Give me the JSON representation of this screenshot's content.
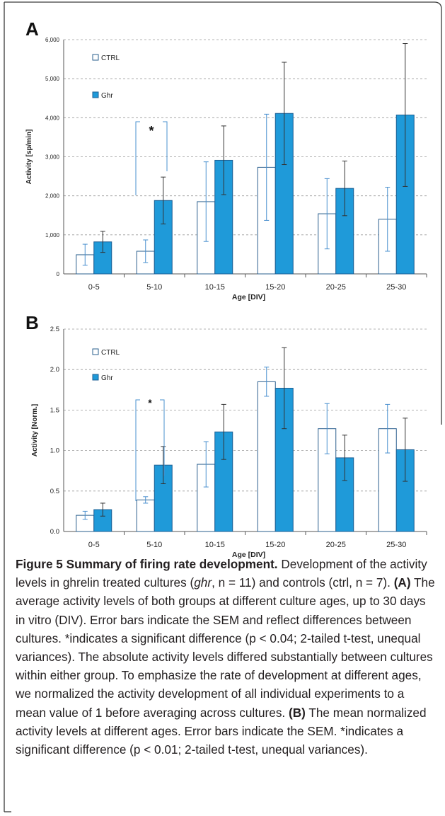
{
  "figure": {
    "caption": {
      "title": "Figure 5 Summary of firing rate development.",
      "text1": " Development of the activity levels in ghrelin treated cultures (",
      "ghr_italic": "ghr",
      "text2": ", n = 11) and controls (ctrl, n = 7). ",
      "a_label": "(A)",
      "text3": " The average activity levels of both groups at different culture ages, up to 30 days in vitro (DIV). Error bars indicate the SEM and reflect differences between cultures. *indicates a significant difference (p < 0.04; 2-tailed t-test, unequal variances). The absolute activity levels differed substantially between cultures within either group. To emphasize the rate of development at different ages, we normalized the activity development of all individual experiments to a mean value of 1 before averaging across cultures. ",
      "b_label": "(B)",
      "text4": " The mean normalized activity levels at different ages. Error bars indicate the SEM. *indicates a significant difference (p < 0.01; 2-tailed t-test, unequal variances)."
    }
  },
  "chart_data": [
    {
      "panel": "A",
      "type": "bar",
      "xlabel": "Age [DIV]",
      "ylabel": "Activity [sp/min]",
      "categories": [
        "0-5",
        "5-10",
        "10-15",
        "15-20",
        "20-25",
        "25-30"
      ],
      "ylim": [
        0,
        6000
      ],
      "yticks": [
        0,
        1000,
        2000,
        3000,
        4000,
        5000,
        6000
      ],
      "ytick_labels": [
        "0",
        "1,000",
        "2,000",
        "3,000",
        "4,000",
        "5,000",
        "6,000"
      ],
      "grid": true,
      "legend_position": "top-left",
      "series": [
        {
          "name": "CTRL",
          "color": "#ffffff",
          "edge": "#2a5f8e",
          "err_color": "#4a90cf",
          "values": [
            490,
            580,
            1850,
            2730,
            1540,
            1400
          ],
          "errors": [
            270,
            290,
            1020,
            1360,
            900,
            820
          ]
        },
        {
          "name": "Ghr",
          "color": "#1f9ad9",
          "edge": "#1d5f93",
          "err_color": "#333333",
          "values": [
            820,
            1880,
            2910,
            4110,
            2190,
            4070
          ],
          "errors": [
            270,
            600,
            880,
            1310,
            700,
            1830
          ]
        }
      ],
      "annotation": {
        "text": "*",
        "category": "5-10"
      }
    },
    {
      "panel": "B",
      "type": "bar",
      "xlabel": "Age [DIV]",
      "ylabel": "Activity [Norm.]",
      "categories": [
        "0-5",
        "5-10",
        "10-15",
        "15-20",
        "20-25",
        "25-30"
      ],
      "ylim": [
        0,
        2.5
      ],
      "yticks": [
        0,
        0.5,
        1,
        1.5,
        2,
        2.5
      ],
      "ytick_labels": [
        "0.0",
        "0.5",
        "1.0",
        "1.5",
        "2.0",
        "2.5"
      ],
      "grid": true,
      "legend_position": "top-left",
      "series": [
        {
          "name": "CTRL",
          "color": "#ffffff",
          "edge": "#2a5f8e",
          "err_color": "#4a90cf",
          "values": [
            0.2,
            0.39,
            0.83,
            1.85,
            1.27,
            1.27
          ],
          "errors": [
            0.05,
            0.04,
            0.28,
            0.18,
            0.31,
            0.3
          ]
        },
        {
          "name": "Ghr",
          "color": "#1f9ad9",
          "edge": "#1d5f93",
          "err_color": "#333333",
          "values": [
            0.27,
            0.82,
            1.23,
            1.77,
            0.91,
            1.01
          ],
          "errors": [
            0.08,
            0.23,
            0.34,
            0.5,
            0.28,
            0.39
          ]
        }
      ],
      "annotation": {
        "text": "*",
        "category": "5-10"
      }
    }
  ]
}
